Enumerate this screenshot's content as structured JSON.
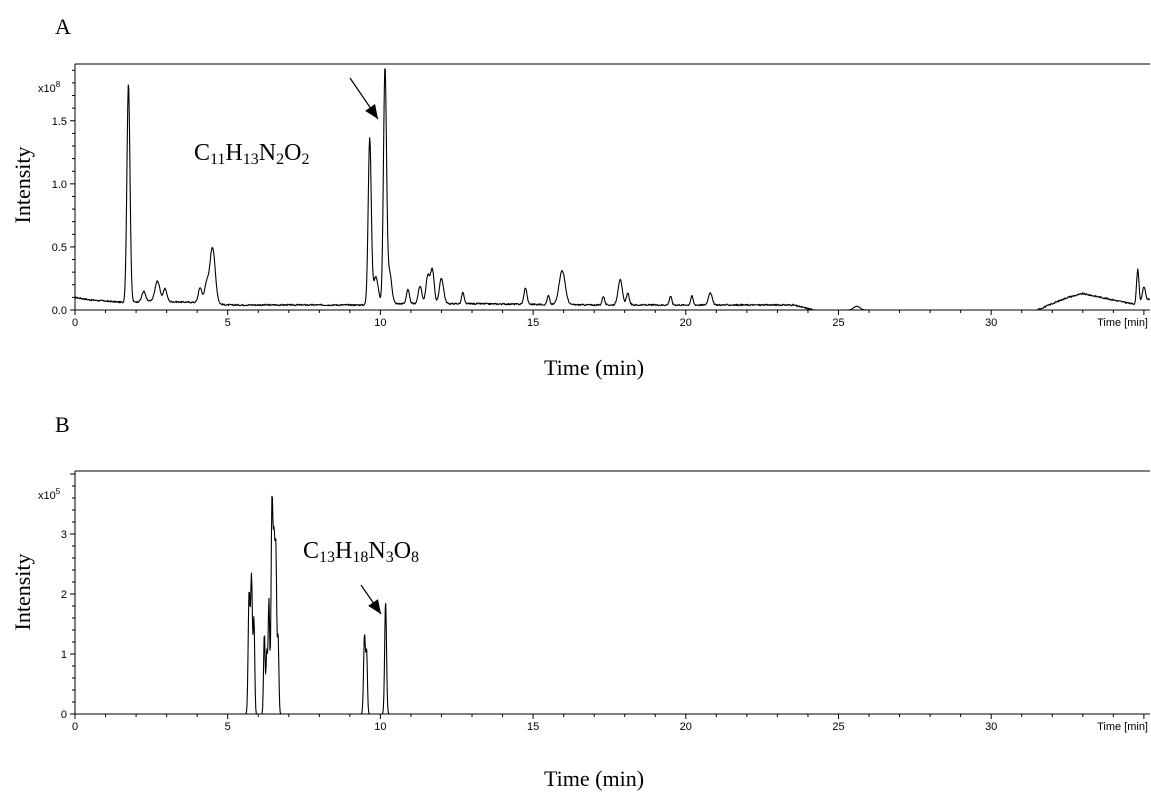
{
  "chart_data": [
    {
      "id": "A",
      "type": "line",
      "panel_label": "A",
      "xlabel": "Time (min)",
      "ylabel": "Intensity",
      "x_unit_label": "Time [min]",
      "y_multiplier_base": "x10",
      "y_multiplier_exp": "8",
      "xlim": [
        0,
        35.2
      ],
      "ylim": [
        0,
        1.95
      ],
      "xticks": [
        0,
        5,
        10,
        15,
        20,
        25,
        30
      ],
      "yticks": [
        0.0,
        0.5,
        1.0,
        1.5
      ],
      "ytick_labels": [
        "0.0",
        "0.5",
        "1.0",
        "1.5"
      ],
      "annotation": {
        "base": "C",
        "parts": [
          [
            "C",
            ""
          ],
          [
            "11",
            ""
          ],
          [
            "H",
            ""
          ],
          [
            "13",
            ""
          ],
          [
            "N",
            ""
          ],
          [
            "2",
            ""
          ],
          [
            "O",
            ""
          ],
          [
            "2",
            ""
          ]
        ],
        "formula": "C11H13N2O2",
        "target_x": 10.1,
        "target_y": 1.62
      },
      "baseline": [
        [
          0,
          0.1
        ],
        [
          0.5,
          0.08
        ],
        [
          1.6,
          0.06
        ],
        [
          2.5,
          0.07
        ],
        [
          4,
          0.06
        ],
        [
          5,
          0.04
        ],
        [
          9.5,
          0.04
        ],
        [
          10.5,
          0.05
        ],
        [
          13,
          0.05
        ],
        [
          17,
          0.04
        ],
        [
          20,
          0.04
        ],
        [
          23.5,
          0.04
        ],
        [
          24.2,
          0.0
        ],
        [
          31.5,
          0.0
        ],
        [
          32.5,
          0.1
        ],
        [
          33,
          0.13
        ],
        [
          34,
          0.08
        ],
        [
          34.8,
          0.04
        ],
        [
          35.2,
          0.09
        ]
      ],
      "peaks": [
        {
          "x": 1.75,
          "y": 1.73,
          "w": 0.05
        },
        {
          "x": 2.25,
          "y": 0.08,
          "w": 0.06
        },
        {
          "x": 2.7,
          "y": 0.16,
          "w": 0.08
        },
        {
          "x": 2.95,
          "y": 0.1,
          "w": 0.06
        },
        {
          "x": 4.1,
          "y": 0.12,
          "w": 0.06
        },
        {
          "x": 4.3,
          "y": 0.14,
          "w": 0.06
        },
        {
          "x": 4.5,
          "y": 0.45,
          "w": 0.09
        },
        {
          "x": 9.65,
          "y": 1.32,
          "w": 0.05
        },
        {
          "x": 9.85,
          "y": 0.22,
          "w": 0.08
        },
        {
          "x": 10.15,
          "y": 1.86,
          "w": 0.05
        },
        {
          "x": 10.3,
          "y": 0.25,
          "w": 0.07
        },
        {
          "x": 10.9,
          "y": 0.11,
          "w": 0.05
        },
        {
          "x": 11.3,
          "y": 0.14,
          "w": 0.06
        },
        {
          "x": 11.55,
          "y": 0.22,
          "w": 0.06
        },
        {
          "x": 11.7,
          "y": 0.27,
          "w": 0.06
        },
        {
          "x": 12.0,
          "y": 0.2,
          "w": 0.07
        },
        {
          "x": 12.7,
          "y": 0.09,
          "w": 0.04
        },
        {
          "x": 14.75,
          "y": 0.13,
          "w": 0.05
        },
        {
          "x": 15.5,
          "y": 0.07,
          "w": 0.04
        },
        {
          "x": 15.95,
          "y": 0.27,
          "w": 0.1
        },
        {
          "x": 17.3,
          "y": 0.07,
          "w": 0.04
        },
        {
          "x": 17.85,
          "y": 0.2,
          "w": 0.07
        },
        {
          "x": 18.1,
          "y": 0.09,
          "w": 0.05
        },
        {
          "x": 19.5,
          "y": 0.07,
          "w": 0.04
        },
        {
          "x": 20.2,
          "y": 0.07,
          "w": 0.04
        },
        {
          "x": 20.8,
          "y": 0.1,
          "w": 0.06
        },
        {
          "x": 25.6,
          "y": 0.03,
          "w": 0.1
        },
        {
          "x": 34.8,
          "y": 0.28,
          "w": 0.04
        },
        {
          "x": 35.0,
          "y": 0.12,
          "w": 0.05
        }
      ]
    },
    {
      "id": "B",
      "type": "line",
      "panel_label": "B",
      "xlabel": "Time (min)",
      "ylabel": "Intensity",
      "x_unit_label": "Time [min]",
      "y_multiplier_base": "x10",
      "y_multiplier_exp": "5",
      "xlim": [
        0,
        35.2
      ],
      "ylim": [
        0,
        4.05
      ],
      "xticks": [
        0,
        5,
        10,
        15,
        20,
        25,
        30
      ],
      "yticks": [
        0,
        1,
        2,
        3
      ],
      "ytick_labels": [
        "0",
        "1",
        "2",
        "3"
      ],
      "annotation": {
        "formula": "C13H18N3O8",
        "target_x": 10.15,
        "target_y": 1.88
      },
      "baseline": [
        [
          0,
          0
        ],
        [
          35.2,
          0
        ]
      ],
      "peaks": [
        {
          "x": 5.7,
          "y": 2.0,
          "w": 0.03
        },
        {
          "x": 5.78,
          "y": 2.28,
          "w": 0.03
        },
        {
          "x": 5.86,
          "y": 1.55,
          "w": 0.025
        },
        {
          "x": 6.2,
          "y": 1.35,
          "w": 0.025
        },
        {
          "x": 6.28,
          "y": 1.05,
          "w": 0.025
        },
        {
          "x": 6.35,
          "y": 1.9,
          "w": 0.025
        },
        {
          "x": 6.45,
          "y": 3.48,
          "w": 0.03
        },
        {
          "x": 6.52,
          "y": 2.75,
          "w": 0.03
        },
        {
          "x": 6.58,
          "y": 2.45,
          "w": 0.025
        },
        {
          "x": 6.65,
          "y": 1.3,
          "w": 0.025
        },
        {
          "x": 9.48,
          "y": 1.32,
          "w": 0.03
        },
        {
          "x": 9.55,
          "y": 1.0,
          "w": 0.025
        },
        {
          "x": 10.17,
          "y": 1.88,
          "w": 0.03
        }
      ]
    }
  ]
}
